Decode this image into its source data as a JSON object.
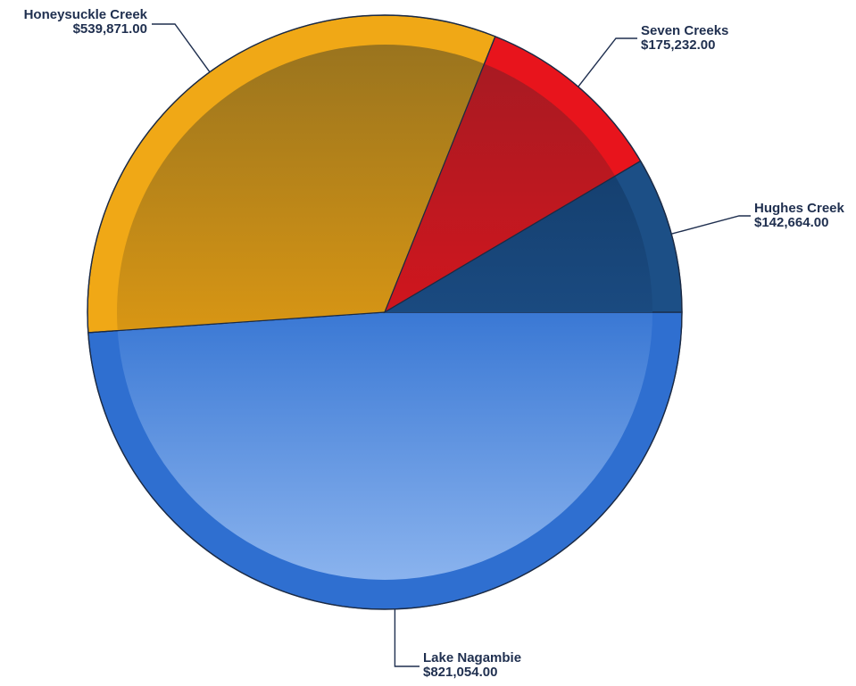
{
  "chart_data": {
    "type": "pie",
    "title": "",
    "slices": [
      {
        "name": "Lake Nagambie",
        "value": 821054.0,
        "label_value": "$821,054.00",
        "color": "#2f6fd0",
        "color_light": "#7faaea"
      },
      {
        "name": "Honeysuckle Creek",
        "value": 539871.0,
        "label_value": "$539,871.00",
        "color": "#f0a816",
        "color_light": "#9a7320"
      },
      {
        "name": "Seven Creeks",
        "value": 175232.0,
        "label_value": "$175,232.00",
        "color": "#e8141c",
        "color_light": "#b01820"
      },
      {
        "name": "Hughes Creek",
        "value": 142664.0,
        "label_value": "$142,664.00",
        "color": "#1c4f86",
        "color_light": "#154070"
      }
    ],
    "legend": "none",
    "labels": "outside-with-leaders"
  }
}
